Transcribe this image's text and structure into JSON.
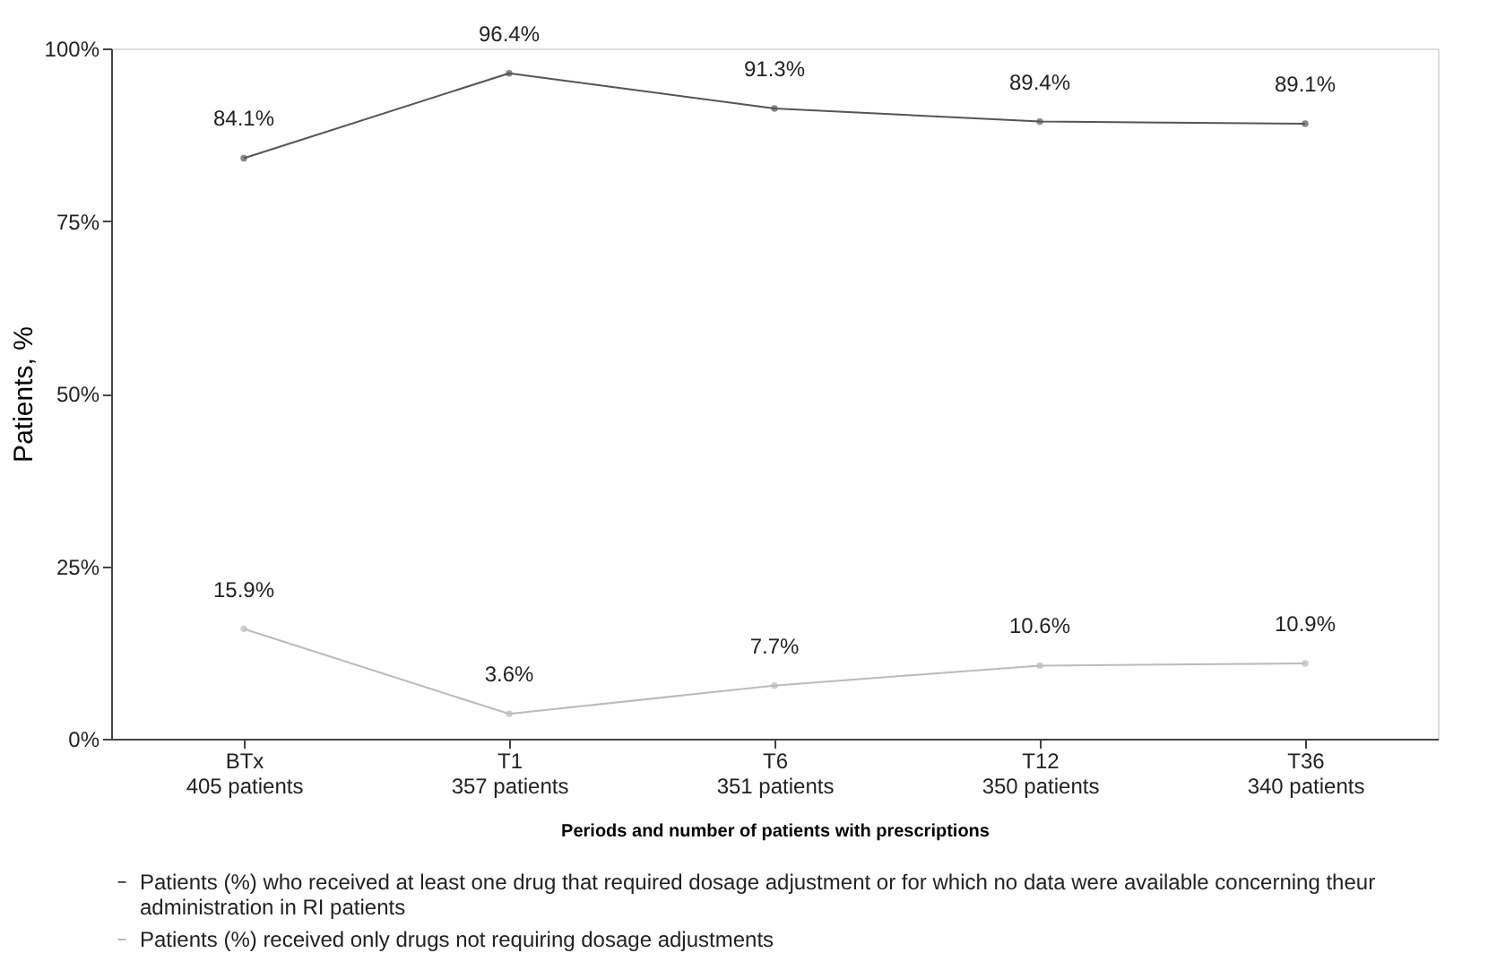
{
  "chart_data": {
    "type": "line",
    "categories": [
      "BTx\n405 patients",
      "T1\n357 patients",
      "T6\n351 patients",
      "T12\n350 patients",
      "T36\n340 patients"
    ],
    "series": [
      {
        "name": "Patients (%) who received at least one drug that required dosage adjustment or for which no data were available concerning theur administration in RI patients",
        "color": "#555555",
        "values": [
          84.1,
          96.4,
          91.3,
          89.4,
          89.1
        ],
        "value_labels": [
          "84.1%",
          "96.4%",
          "91.3%",
          "89.4%",
          "89.1%"
        ]
      },
      {
        "name": "Patients (%) received only drugs not requiring dosage adjustments",
        "color": "#bbbbbb",
        "values": [
          15.9,
          3.6,
          7.7,
          10.6,
          10.9
        ],
        "value_labels": [
          "15.9%",
          "3.6%",
          "7.7%",
          "10.6%",
          "10.9%"
        ]
      }
    ],
    "xlabel": "Periods and number of patients with prescriptions",
    "ylabel": "Patients, %",
    "ylim": [
      0,
      100
    ],
    "yticks": [
      {
        "value": 0,
        "label": "0%"
      },
      {
        "value": 25,
        "label": "25%"
      },
      {
        "value": 50,
        "label": "50%"
      },
      {
        "value": 75,
        "label": "75%"
      },
      {
        "value": 100,
        "label": "100%"
      }
    ],
    "marker": "circle",
    "line_style": "solid",
    "grid": false,
    "legend": "bottom"
  }
}
